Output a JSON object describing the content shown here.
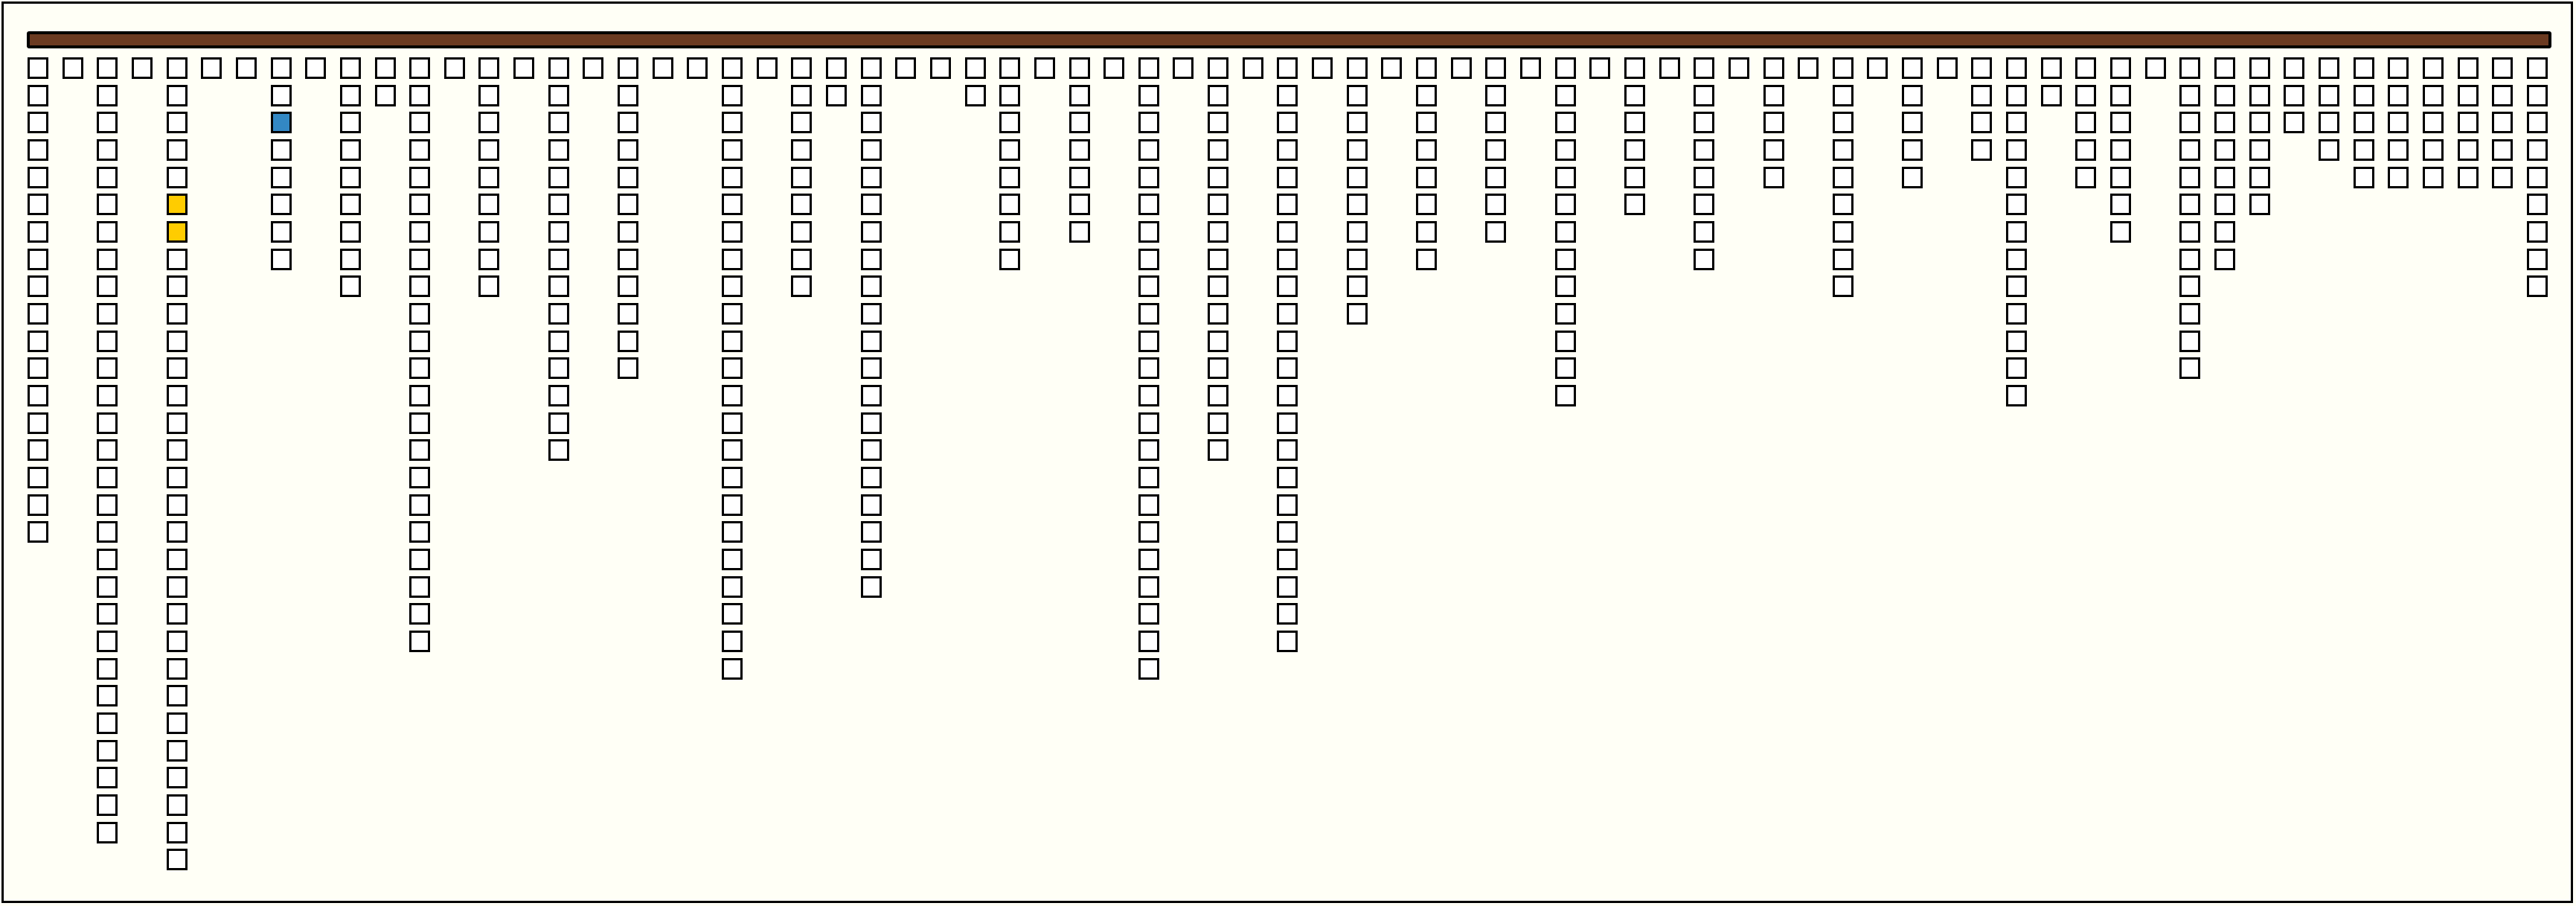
{
  "colors": {
    "background": "#fffff6",
    "bar": "#6b3a22",
    "cell": "#ffffff",
    "cell_border": "#000000"
  },
  "column_counts": [
    18,
    1,
    29,
    1,
    30,
    1,
    1,
    8,
    1,
    9,
    2,
    22,
    1,
    9,
    1,
    15,
    1,
    12,
    1,
    1,
    23,
    1,
    9,
    2,
    20,
    1,
    1,
    2,
    8,
    1,
    7,
    1,
    23,
    1,
    15,
    1,
    22,
    1,
    10,
    1,
    8,
    1,
    7,
    1,
    13,
    1,
    6,
    1,
    8,
    1,
    5,
    1,
    9,
    1,
    5,
    1,
    4,
    13,
    2,
    5,
    7,
    1,
    12,
    8,
    6,
    3,
    4,
    5,
    5,
    5,
    5,
    5,
    9
  ],
  "highlighted_cells": [
    {
      "column": 4,
      "row": 5,
      "color": "#ffcc00"
    },
    {
      "column": 4,
      "row": 6,
      "color": "#ffcc00"
    },
    {
      "column": 7,
      "row": 2,
      "color": "#3388c4"
    }
  ]
}
